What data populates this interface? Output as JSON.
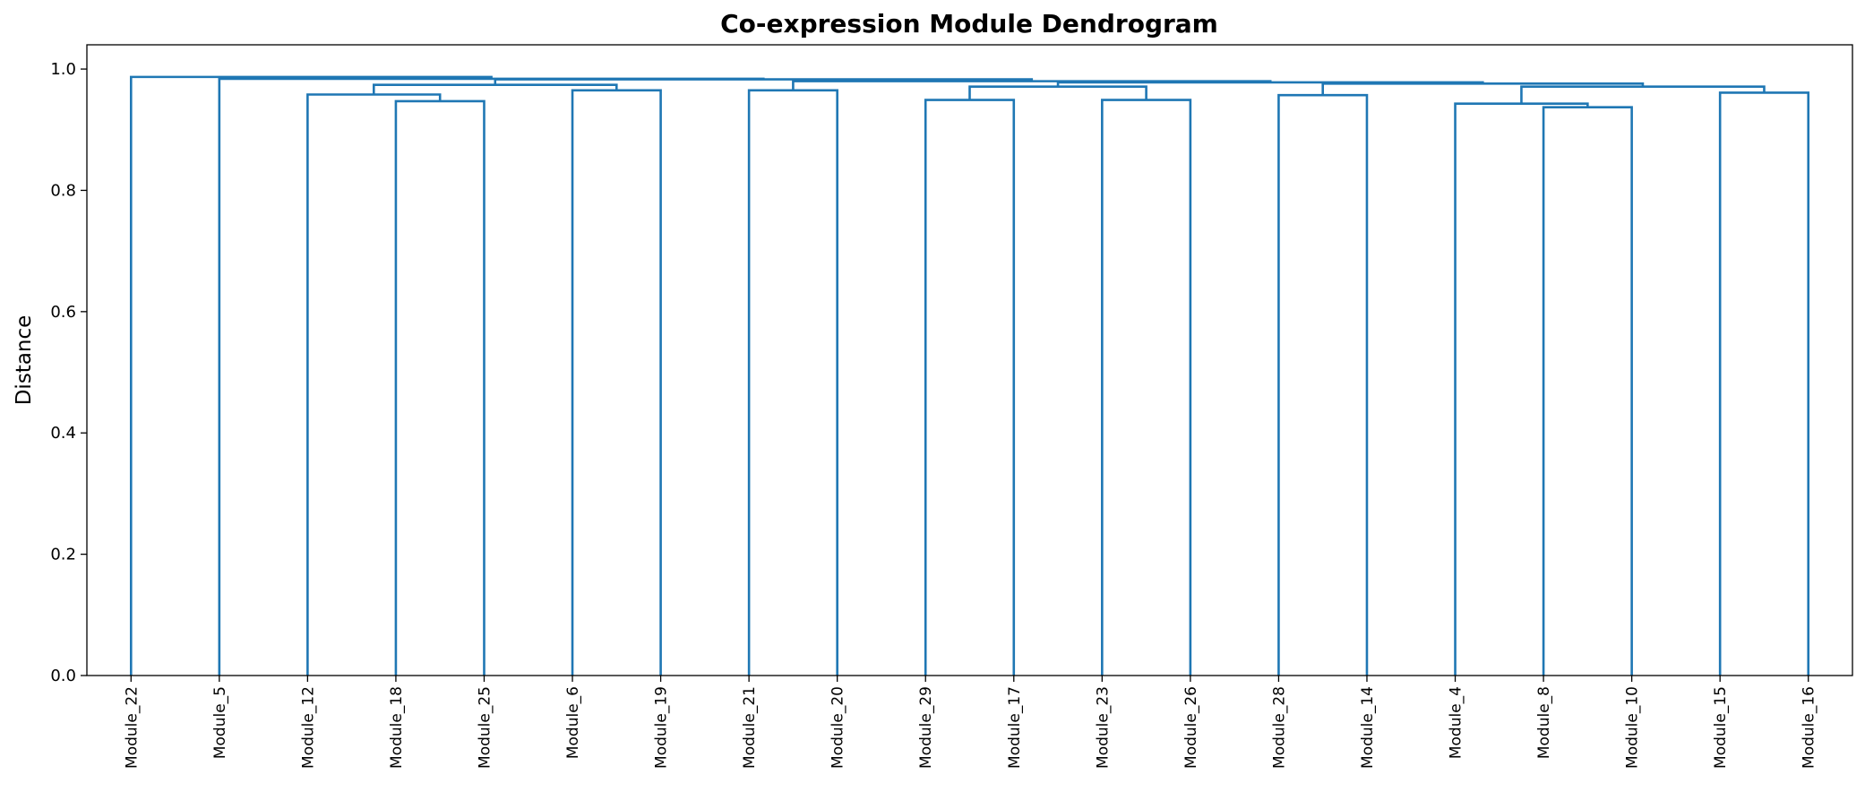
{
  "chart_data": {
    "type": "dendrogram",
    "title": "Co-expression Module Dendrogram",
    "xlabel": "",
    "ylabel": "Distance",
    "ylim": [
      0,
      1.04
    ],
    "yticks": [
      0.0,
      0.2,
      0.4,
      0.6,
      0.8,
      1.0
    ],
    "ytick_labels": [
      "0.0",
      "0.2",
      "0.4",
      "0.6",
      "0.8",
      "1.0"
    ],
    "grid": false,
    "link_color": "#1f77b4",
    "leaves": [
      "Module_22",
      "Module_5",
      "Module_12",
      "Module_18",
      "Module_25",
      "Module_6",
      "Module_19",
      "Module_21",
      "Module_20",
      "Module_29",
      "Module_17",
      "Module_23",
      "Module_26",
      "Module_28",
      "Module_14",
      "Module_4",
      "Module_8",
      "Module_10",
      "Module_15",
      "Module_16"
    ],
    "links": [
      {
        "left": "Module_18",
        "right": "Module_25",
        "height": 0.947
      },
      {
        "left": "Module_12",
        "right": "L1",
        "height": 0.958
      },
      {
        "left": "Module_6",
        "right": "Module_19",
        "height": 0.965
      },
      {
        "left": "L2",
        "right": "L3",
        "height": 0.974
      },
      {
        "left": "Module_21",
        "right": "Module_20",
        "height": 0.965
      },
      {
        "left": "Module_29",
        "right": "Module_17",
        "height": 0.949
      },
      {
        "left": "Module_23",
        "right": "Module_26",
        "height": 0.949
      },
      {
        "left": "L6",
        "right": "L7",
        "height": 0.971
      },
      {
        "left": "Module_28",
        "right": "Module_14",
        "height": 0.957
      },
      {
        "left": "Module_8",
        "right": "Module_10",
        "height": 0.937
      },
      {
        "left": "Module_4",
        "right": "L10",
        "height": 0.943
      },
      {
        "left": "Module_15",
        "right": "Module_16",
        "height": 0.961
      },
      {
        "left": "L11",
        "right": "L12",
        "height": 0.971
      },
      {
        "left": "L9",
        "right": "L13",
        "height": 0.976
      },
      {
        "left": "L8",
        "right": "L14",
        "height": 0.978
      },
      {
        "left": "L5",
        "right": "L15",
        "height": 0.98
      },
      {
        "left": "L4",
        "right": "L16",
        "height": 0.983
      },
      {
        "left": "Module_5",
        "right": "L17",
        "height": 0.984
      },
      {
        "left": "Module_22",
        "right": "L18",
        "height": 0.987
      }
    ]
  }
}
